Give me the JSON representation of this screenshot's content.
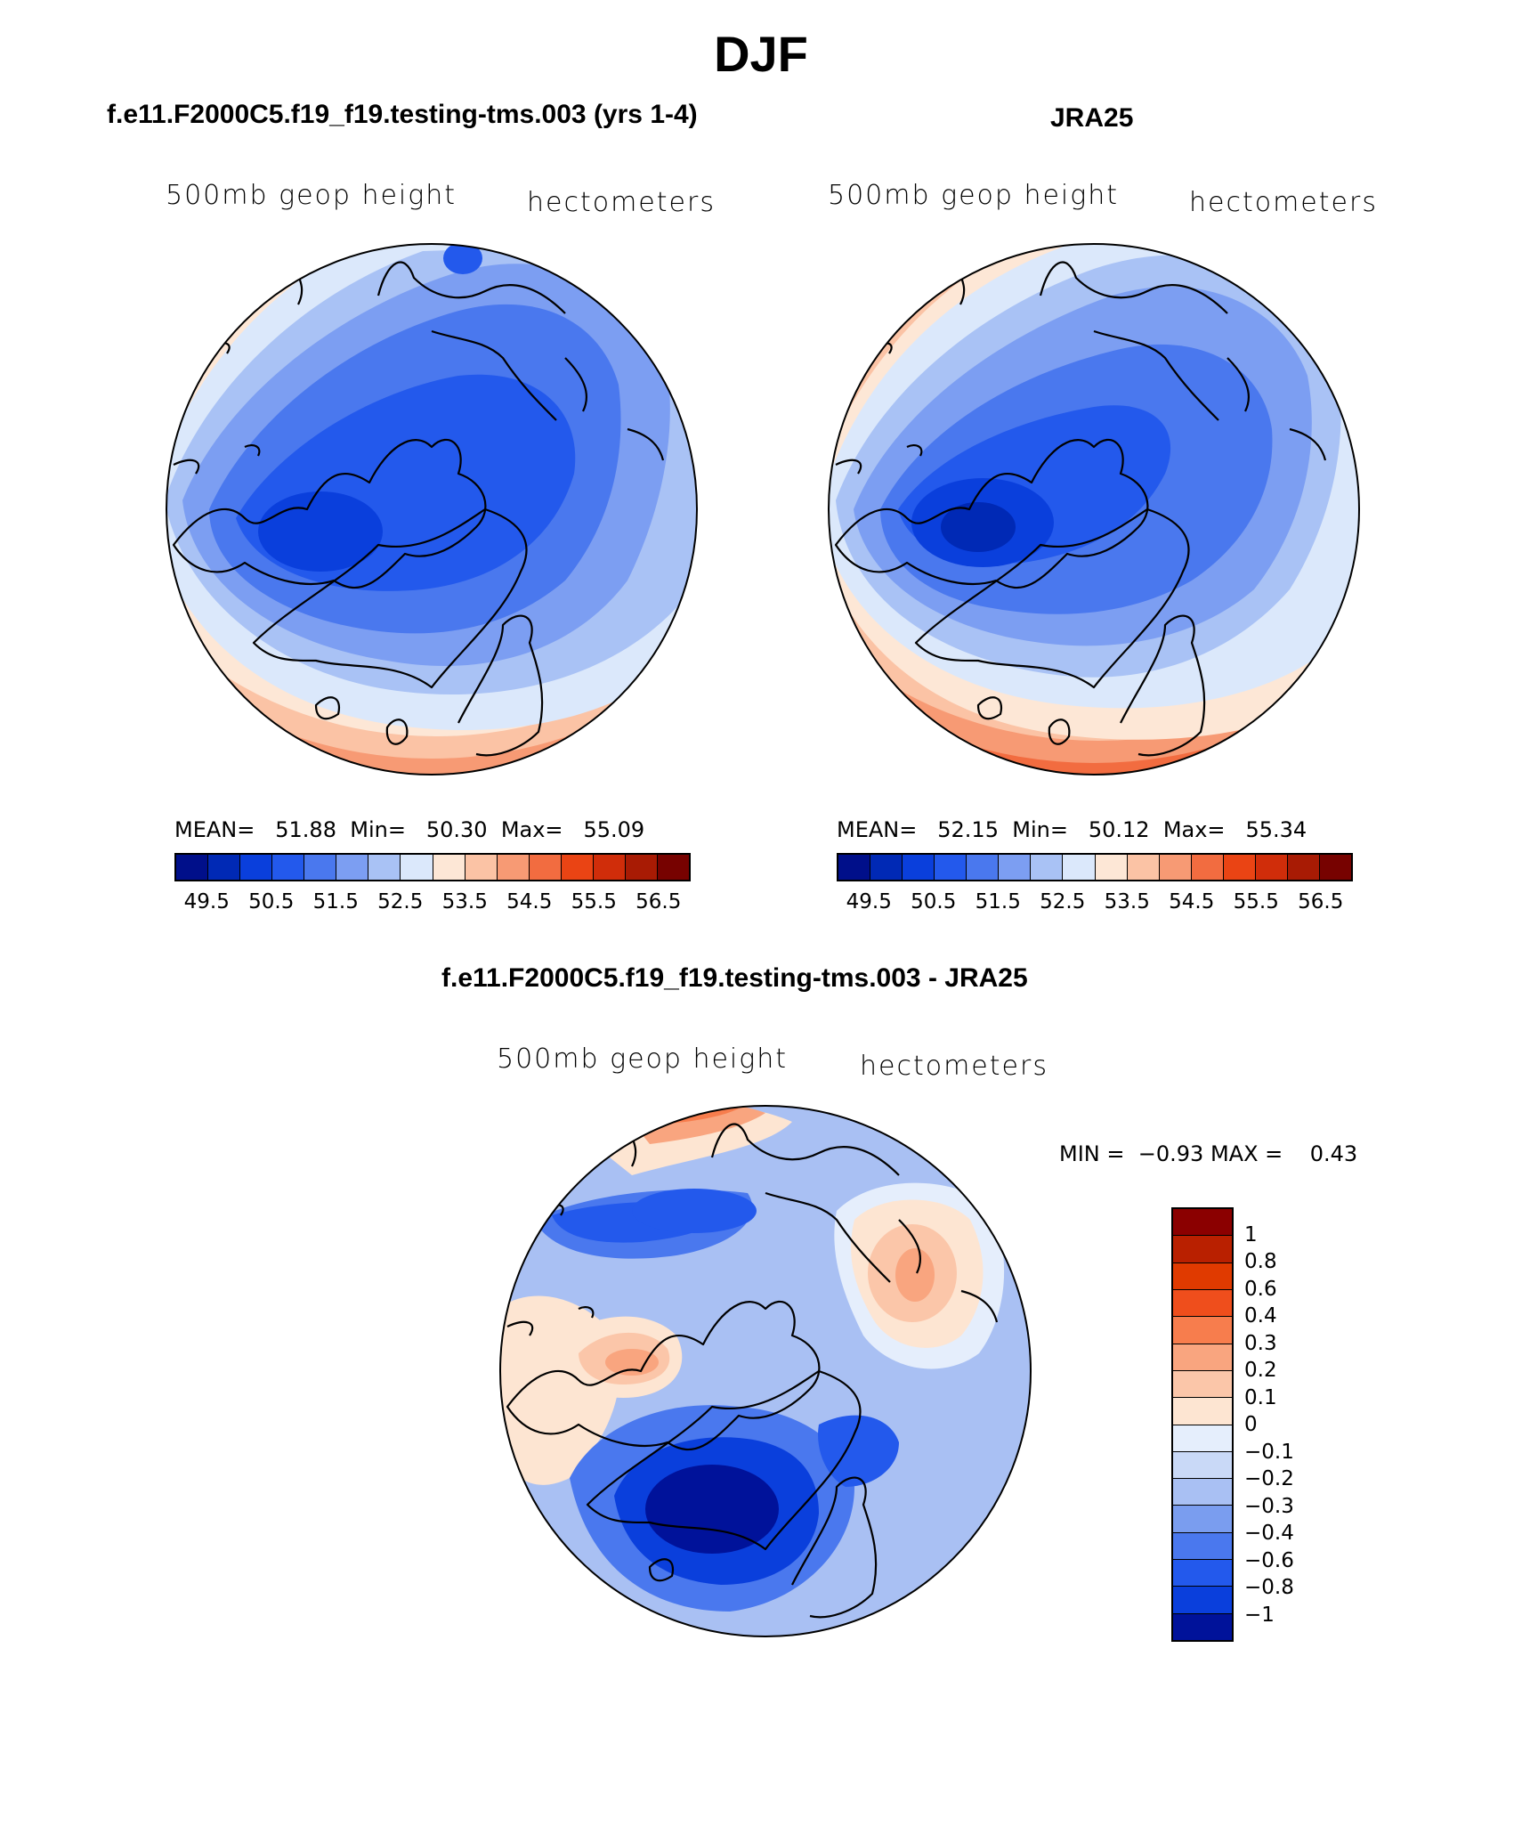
{
  "figure": {
    "title": "DJF"
  },
  "colors": {
    "abs_palette": [
      "#000f8a",
      "#0029b5",
      "#0a3fdc",
      "#2359ec",
      "#4a78ee",
      "#7c9ef2",
      "#a9c2f5",
      "#dbe8fb",
      "#fde7d6",
      "#fbc3a5",
      "#f79a74",
      "#f26c40",
      "#ea4414",
      "#d02d0a",
      "#a81b04",
      "#770200"
    ],
    "diff_palette": [
      "#8b0000",
      "#b92000",
      "#e03a00",
      "#ef4e1c",
      "#f77d4d",
      "#f9a57f",
      "#fbc6a9",
      "#fde5d2",
      "#e5eefc",
      "#c9d9f7",
      "#a9c0f3",
      "#7a9def",
      "#4a78ee",
      "#2359ec",
      "#0a3fdc",
      "#00129a"
    ]
  },
  "panels": {
    "model": {
      "title": "f.e11.F2000C5.f19_f19.testing-tms.003 (yrs 1-4)",
      "left_label": "500mb geop height",
      "right_label": "hectometers",
      "stats": {
        "mean_label": "MEAN=",
        "mean": "51.88",
        "min_label": "Min=",
        "min": "50.30",
        "max_label": "Max=",
        "max": "55.09"
      },
      "colorbar_labels": [
        "49.5",
        "50.5",
        "51.5",
        "52.5",
        "53.5",
        "54.5",
        "55.5",
        "56.5"
      ]
    },
    "obs": {
      "title": "JRA25",
      "left_label": "500mb geop height",
      "right_label": "hectometers",
      "stats": {
        "mean_label": "MEAN=",
        "mean": "52.15",
        "min_label": "Min=",
        "min": "50.12",
        "max_label": "Max=",
        "max": "55.34"
      },
      "colorbar_labels": [
        "49.5",
        "50.5",
        "51.5",
        "52.5",
        "53.5",
        "54.5",
        "55.5",
        "56.5"
      ]
    },
    "diff": {
      "title": "f.e11.F2000C5.f19_f19.testing-tms.003 - JRA25",
      "left_label": "500mb geop height",
      "right_label": "hectometers",
      "stats": {
        "min_label": "MIN =",
        "min": "−0.93",
        "max_label": "MAX =",
        "max": "0.43"
      },
      "colorbar_labels": [
        "1",
        "0.8",
        "0.6",
        "0.4",
        "0.3",
        "0.2",
        "0.1",
        "0",
        "−0.1",
        "−0.2",
        "−0.3",
        "−0.4",
        "−0.6",
        "−0.8",
        "−1"
      ]
    }
  },
  "map_data": {
    "projection": "north polar stereographic",
    "variable": "500mb geopotential height",
    "season": "DJF",
    "abs_levels": [
      49.5,
      50,
      50.5,
      51,
      51.5,
      52,
      52.5,
      53,
      53.5,
      54,
      54.5,
      55,
      55.5,
      56,
      56.5
    ],
    "diff_levels": [
      -1,
      -0.8,
      -0.6,
      -0.4,
      -0.3,
      -0.2,
      -0.1,
      0,
      0.1,
      0.2,
      0.3,
      0.4,
      0.6,
      0.8,
      1
    ]
  }
}
